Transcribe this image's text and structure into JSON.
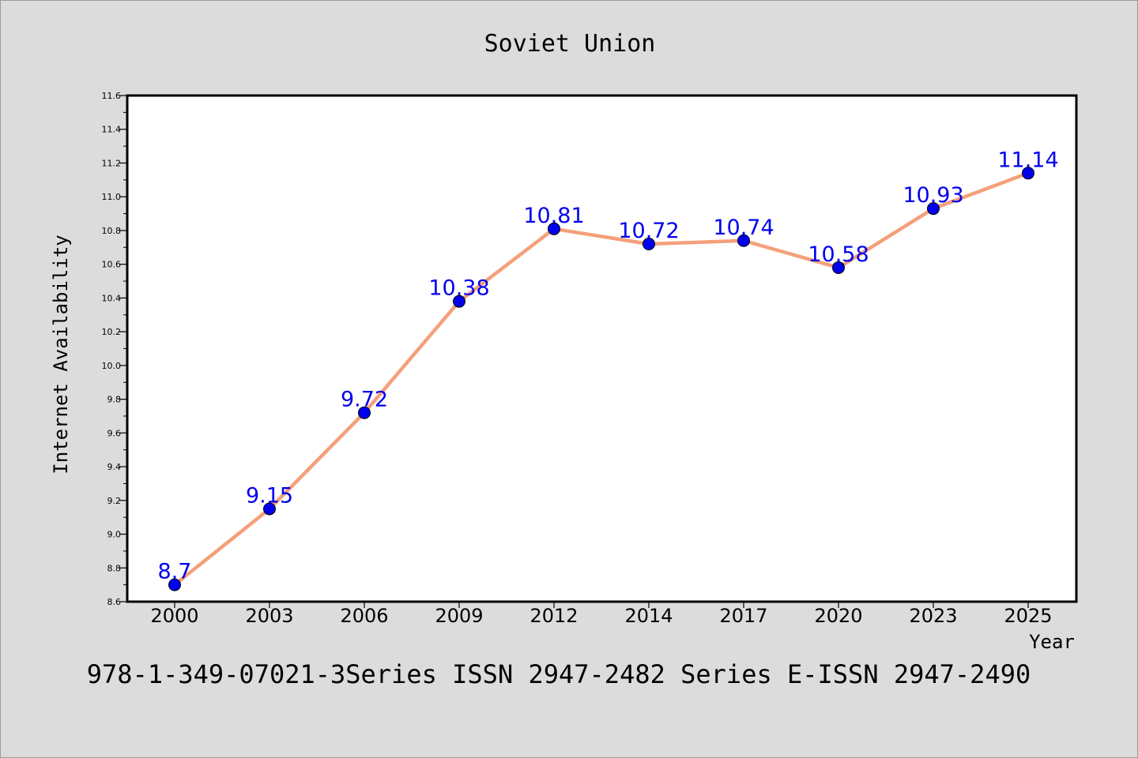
{
  "chart_data": {
    "type": "line",
    "title": "Soviet Union",
    "xlabel": "Year",
    "ylabel": "Internet Availability",
    "categories": [
      "2000",
      "2003",
      "2006",
      "2009",
      "2012",
      "2014",
      "2017",
      "2020",
      "2023",
      "2025"
    ],
    "series": [
      {
        "values": [
          8.7,
          9.15,
          9.72,
          10.38,
          10.81,
          10.72,
          10.74,
          10.58,
          10.93,
          11.14
        ],
        "data_labels": [
          "8.7",
          "9.15",
          "9.72",
          "10.38",
          "10.81",
          "10.72",
          "10.74",
          "10.58",
          "10.93",
          "11.14"
        ],
        "line_color": "#f4a07a",
        "marker_color": "#0000ee",
        "label_color": "#0000ee"
      }
    ],
    "ylim": [
      8.6,
      11.6
    ],
    "yticks": [
      "8.6",
      "8.8",
      "9.0",
      "9.2",
      "9.4",
      "9.6",
      "9.8",
      "10.0",
      "10.2",
      "10.4",
      "10.6",
      "10.8",
      "11.0",
      "11.2",
      "11.4",
      "11.6"
    ],
    "grid": false,
    "legend": "none",
    "footer": "978-1-349-07021-3Series ISSN 2947-2482 Series E-ISSN 2947-2490",
    "colors": {
      "background": "#dcdcdc",
      "plot_background": "#ffffff",
      "axis": "#000000"
    }
  }
}
